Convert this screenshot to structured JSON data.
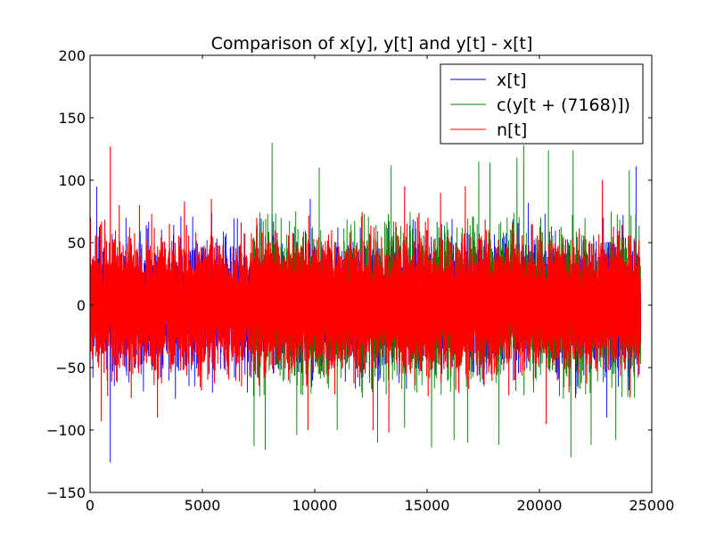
{
  "chart_data": {
    "type": "line",
    "title": "Comparison of x[y], y[t] and y[t] - x[t]",
    "xlabel": "",
    "ylabel": "",
    "xlim": [
      0,
      25000
    ],
    "ylim": [
      -150,
      200
    ],
    "xticks": [
      0,
      5000,
      10000,
      15000,
      20000,
      25000
    ],
    "yticks": [
      -150,
      -100,
      -50,
      0,
      50,
      100,
      150,
      200
    ],
    "xtick_labels": [
      "0",
      "5000",
      "10000",
      "15000",
      "20000",
      "25000"
    ],
    "ytick_labels": [
      "−150",
      "−100",
      "−50",
      "0",
      "50",
      "100",
      "150",
      "200"
    ],
    "grid": false,
    "legend_position": "top-right",
    "series": [
      {
        "name": "x[t]",
        "color": "#0000ff",
        "x_start": 0,
        "x_end": 24500,
        "peaks": [
          [
            300,
            95
          ],
          [
            900,
            -126
          ],
          [
            1600,
            70
          ],
          [
            9800,
            85
          ],
          [
            19500,
            82
          ],
          [
            24300,
            111
          ],
          [
            23000,
            -90
          ],
          [
            3800,
            -75
          ],
          [
            12000,
            -65
          ],
          [
            7000,
            -70
          ]
        ]
      },
      {
        "name": "c(y[t + (7168)])",
        "color": "#008000",
        "x_start": 7168,
        "x_end": 24500,
        "peaks": [
          [
            7300,
            -113
          ],
          [
            7800,
            -116
          ],
          [
            8100,
            130
          ],
          [
            9200,
            -104
          ],
          [
            10200,
            110
          ],
          [
            11000,
            -100
          ],
          [
            12800,
            -110
          ],
          [
            13400,
            112
          ],
          [
            14000,
            -98
          ],
          [
            15200,
            -114
          ],
          [
            16200,
            -108
          ],
          [
            16800,
            -110
          ],
          [
            17300,
            115
          ],
          [
            17800,
            114
          ],
          [
            18200,
            -112
          ],
          [
            19000,
            118
          ],
          [
            19300,
            128
          ],
          [
            20400,
            124
          ],
          [
            21400,
            -122
          ],
          [
            21500,
            124
          ],
          [
            22300,
            -112
          ],
          [
            23400,
            -108
          ],
          [
            24000,
            108
          ]
        ]
      },
      {
        "name": "n[t]",
        "color": "#ff0000",
        "x_start": 0,
        "x_end": 24500,
        "peaks": [
          [
            900,
            127
          ],
          [
            1300,
            80
          ],
          [
            2200,
            80
          ],
          [
            4200,
            83
          ],
          [
            5400,
            85
          ],
          [
            9700,
            -100
          ],
          [
            12600,
            -100
          ],
          [
            13300,
            -102
          ],
          [
            14000,
            95
          ],
          [
            15600,
            90
          ],
          [
            16700,
            95
          ],
          [
            22800,
            100
          ],
          [
            20300,
            -95
          ],
          [
            3000,
            -90
          ],
          [
            500,
            -93
          ]
        ]
      }
    ]
  }
}
